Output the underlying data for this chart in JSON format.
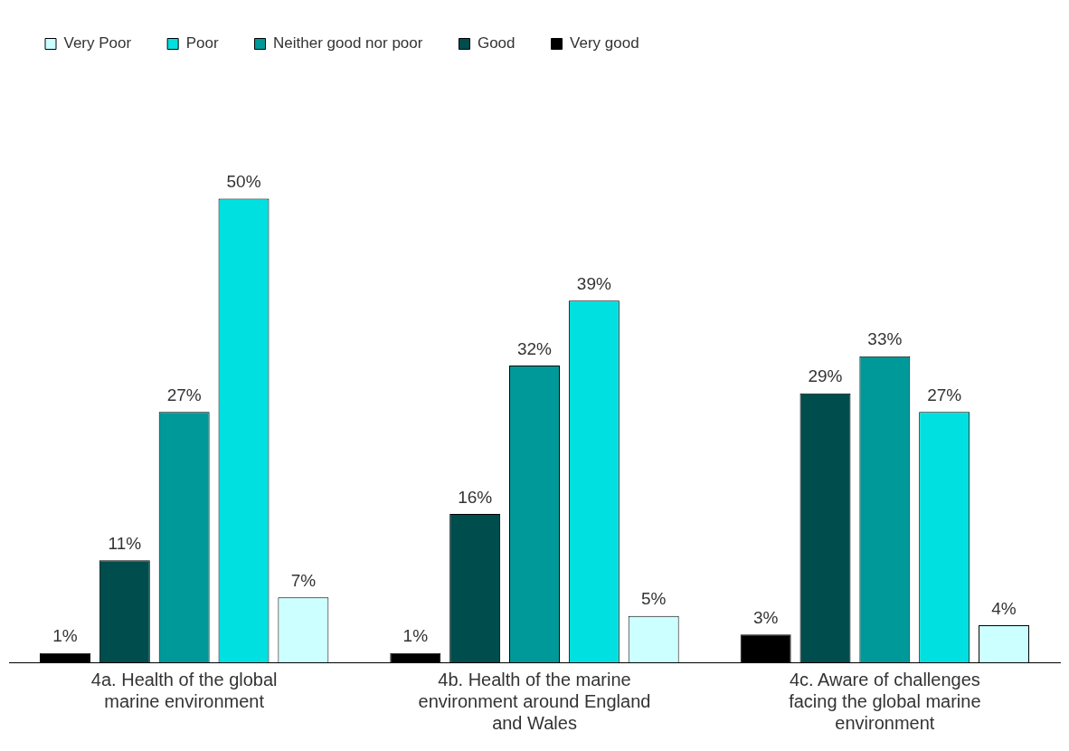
{
  "chart_data": {
    "type": "bar",
    "categories": [
      "4a. Health of the global marine environment",
      "4b. Health of the marine environment around England and Wales",
      "4c. Aware of challenges facing the global marine environment"
    ],
    "series": [
      {
        "name": "Very good",
        "color": "#000000",
        "values": [
          1,
          1,
          3
        ],
        "value_labels": [
          "1%",
          "1%",
          "3%"
        ]
      },
      {
        "name": "Good",
        "color": "#004d4d",
        "values": [
          11,
          16,
          29
        ],
        "value_labels": [
          "11%",
          "16%",
          "29%"
        ]
      },
      {
        "name": "Neither good nor poor",
        "color": "#009999",
        "values": [
          27,
          32,
          33
        ],
        "value_labels": [
          "27%",
          "32%",
          "33%"
        ]
      },
      {
        "name": "Poor",
        "color": "#00e0e0",
        "values": [
          50,
          39,
          27
        ],
        "value_labels": [
          "50%",
          "39%",
          "27%"
        ]
      },
      {
        "name": "Very Poor",
        "color": "#ccffff",
        "values": [
          7,
          5,
          4
        ],
        "value_labels": [
          "7%",
          "5%",
          "4%"
        ]
      }
    ],
    "legend": "top left",
    "grid": false
  }
}
